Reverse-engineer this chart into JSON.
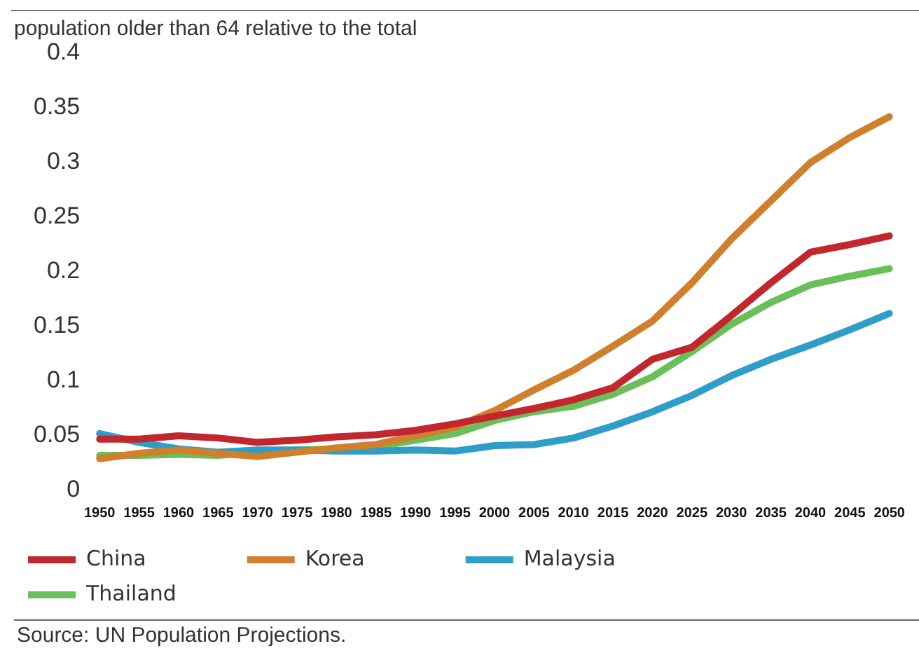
{
  "chart_data": {
    "type": "line",
    "title": "population older than 64 relative to the total",
    "categories": [
      "1950",
      "1955",
      "1960",
      "1965",
      "1970",
      "1975",
      "1980",
      "1985",
      "1990",
      "1995",
      "2000",
      "2005",
      "2010",
      "2015",
      "2020",
      "2025",
      "2030",
      "2035",
      "2040",
      "2045",
      "2050"
    ],
    "series": [
      {
        "name": "China",
        "color": "#c1272d",
        "values": [
          0.047,
          0.047,
          0.05,
          0.048,
          0.044,
          0.046,
          0.049,
          0.051,
          0.055,
          0.061,
          0.068,
          0.075,
          0.083,
          0.094,
          0.12,
          0.131,
          0.16,
          0.19,
          0.218,
          0.225,
          0.233
        ]
      },
      {
        "name": "Korea",
        "color": "#d07f2c",
        "values": [
          0.029,
          0.034,
          0.037,
          0.034,
          0.031,
          0.035,
          0.039,
          0.042,
          0.05,
          0.058,
          0.073,
          0.092,
          0.11,
          0.132,
          0.155,
          0.19,
          0.23,
          0.265,
          0.3,
          0.323,
          0.342
        ]
      },
      {
        "name": "Malaysia",
        "color": "#2e9dc8",
        "values": [
          0.052,
          0.044,
          0.038,
          0.035,
          0.037,
          0.037,
          0.036,
          0.036,
          0.037,
          0.036,
          0.041,
          0.042,
          0.048,
          0.059,
          0.072,
          0.087,
          0.105,
          0.12,
          0.133,
          0.147,
          0.162
        ]
      },
      {
        "name": "Thailand",
        "color": "#6abf5b",
        "values": [
          0.032,
          0.032,
          0.033,
          0.032,
          0.035,
          0.037,
          0.038,
          0.04,
          0.046,
          0.052,
          0.064,
          0.072,
          0.077,
          0.088,
          0.104,
          0.127,
          0.152,
          0.172,
          0.188,
          0.196,
          0.203
        ]
      }
    ],
    "ylim": [
      0,
      0.4
    ],
    "yticks": [
      0,
      0.05,
      0.1,
      0.15,
      0.2,
      0.25,
      0.3,
      0.35,
      0.4
    ],
    "grid": false,
    "legend": "bottom",
    "annotations": [
      "Source: UN Population Projections."
    ]
  }
}
